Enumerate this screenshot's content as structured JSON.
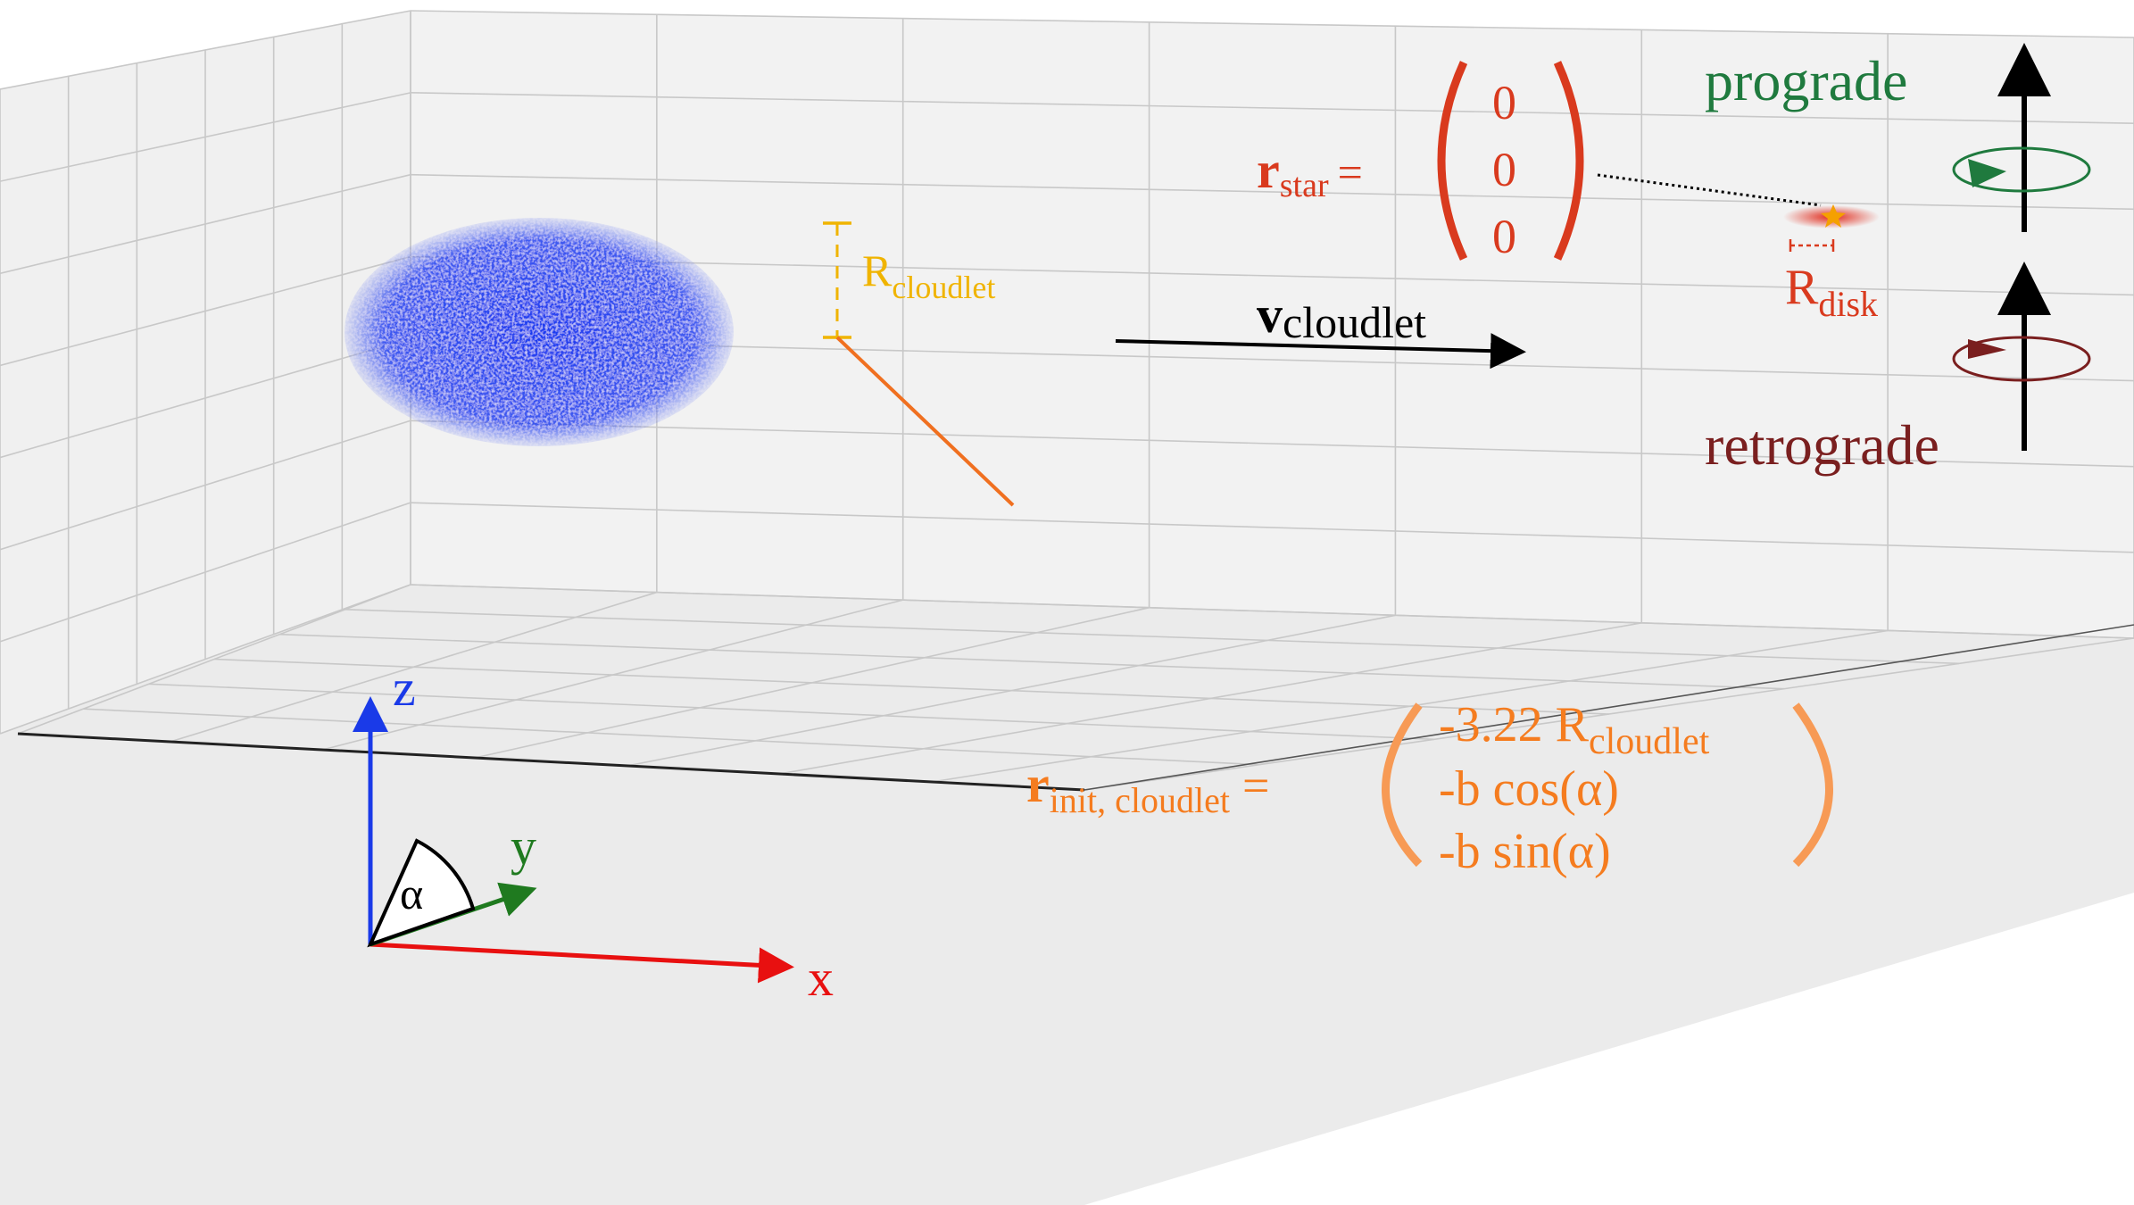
{
  "colors": {
    "pane": "#eeeeee",
    "grid": "#c8c8c8",
    "frame": "#222222",
    "cloudlet": "#1a35e8",
    "cloudlet_radius": "#f0b400",
    "init_vector": "#f07020",
    "init_text": "#f57c1f",
    "star_text": "#d93a1e",
    "disk_glow": "#e02010",
    "star": "#f5a000",
    "prograde": "#1f7a3e",
    "retrograde": "#7a1f1f",
    "axis_x": "#e81010",
    "axis_y": "#1f7a1f",
    "axis_z": "#1a3ae8",
    "black": "#000000"
  },
  "labels": {
    "r_cloudlet": {
      "main": "R",
      "sub": "cloudlet"
    },
    "v_cloudlet": {
      "main": "v",
      "sub": "cloudlet"
    },
    "r_star": {
      "main": "r",
      "sub": "star",
      "equals": "="
    },
    "star_vector": [
      "0",
      "0",
      "0"
    ],
    "r_disk": {
      "main": "R",
      "sub": "disk"
    },
    "prograde": "prograde",
    "retrograde": "retrograde",
    "r_init": {
      "main": "r",
      "sub": "init, cloudlet",
      "equals": "="
    },
    "init_vector": {
      "row1_main": "-3.22 R",
      "row1_sub": "cloudlet",
      "row2": "-b cos(α)",
      "row3": "-b sin(α)"
    },
    "axes": {
      "x": "x",
      "y": "y",
      "z": "z",
      "angle": "α"
    }
  },
  "icons": {
    "star_marker": "star-icon",
    "prograde_rotation": "rotation-arrow-icon",
    "retrograde_rotation": "rotation-arrow-icon"
  }
}
